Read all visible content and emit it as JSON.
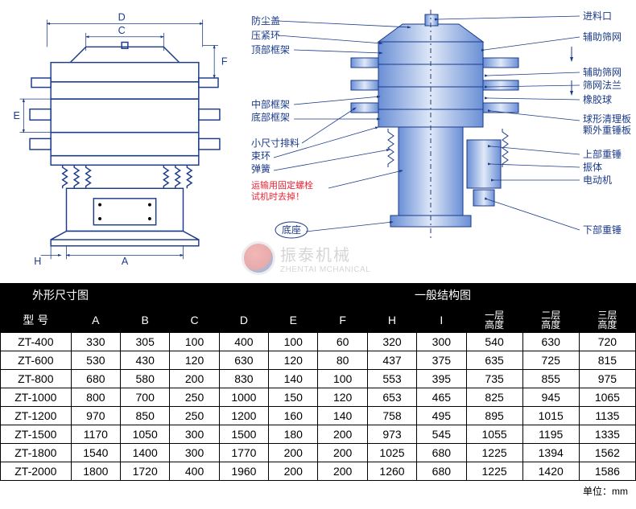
{
  "colors": {
    "line": "#1a3a8a",
    "red": "#e23",
    "black": "#000000",
    "white": "#ffffff"
  },
  "left_dims": {
    "D": "D",
    "C": "C",
    "F": "F",
    "E": "E",
    "A": "A",
    "H": "H"
  },
  "left_title": "外形尺寸图",
  "right_title": "一般结构图",
  "right_labels": {
    "fangchen": "防尘盖",
    "yajin": "压紧环",
    "dingbu": "顶部框架",
    "zhongbu": "中部框架",
    "dibu": "底部框架",
    "xiaochi": "小尺寸排料",
    "shuhuan": "束环",
    "tanhuang": "弹簧",
    "red1": "运输用固定螺栓",
    "red2": "试机时去掉！",
    "dizuo": "底座",
    "jinliao": "进料口",
    "fuzhu1": "辅助筛网",
    "fuzhu2": "辅助筛网",
    "shaiwang": "筛网法兰",
    "xiangjiao": "橡胶球",
    "qiuxing": "球形清理板",
    "kewai": "颗外重锤板",
    "shangbu": "上部重锤",
    "zhenti": "振体",
    "diandong": "电动机",
    "xiabu": "下部重锤"
  },
  "watermark": {
    "cn": "振泰机械",
    "en": "ZHENTAI MCHANICAL"
  },
  "table": {
    "headers": [
      "型 号",
      "A",
      "B",
      "C",
      "D",
      "E",
      "F",
      "H",
      "I",
      "一层\n高度",
      "二层\n高度",
      "三层\n高度"
    ],
    "rows": [
      [
        "ZT-400",
        "330",
        "305",
        "100",
        "400",
        "100",
        "60",
        "320",
        "300",
        "540",
        "630",
        "720"
      ],
      [
        "ZT-600",
        "530",
        "430",
        "120",
        "630",
        "120",
        "80",
        "437",
        "375",
        "635",
        "725",
        "815"
      ],
      [
        "ZT-800",
        "680",
        "580",
        "200",
        "830",
        "140",
        "100",
        "553",
        "395",
        "735",
        "855",
        "975"
      ],
      [
        "ZT-1000",
        "800",
        "700",
        "250",
        "1000",
        "150",
        "120",
        "653",
        "465",
        "825",
        "945",
        "1065"
      ],
      [
        "ZT-1200",
        "970",
        "850",
        "250",
        "1200",
        "160",
        "140",
        "758",
        "495",
        "895",
        "1015",
        "1135"
      ],
      [
        "ZT-1500",
        "1170",
        "1050",
        "300",
        "1500",
        "180",
        "200",
        "973",
        "545",
        "1055",
        "1195",
        "1335"
      ],
      [
        "ZT-1800",
        "1540",
        "1400",
        "300",
        "1770",
        "200",
        "200",
        "1025",
        "680",
        "1225",
        "1394",
        "1562"
      ],
      [
        "ZT-2000",
        "1800",
        "1720",
        "400",
        "1960",
        "200",
        "200",
        "1260",
        "680",
        "1225",
        "1420",
        "1586"
      ]
    ]
  },
  "unit": "单位：mm"
}
